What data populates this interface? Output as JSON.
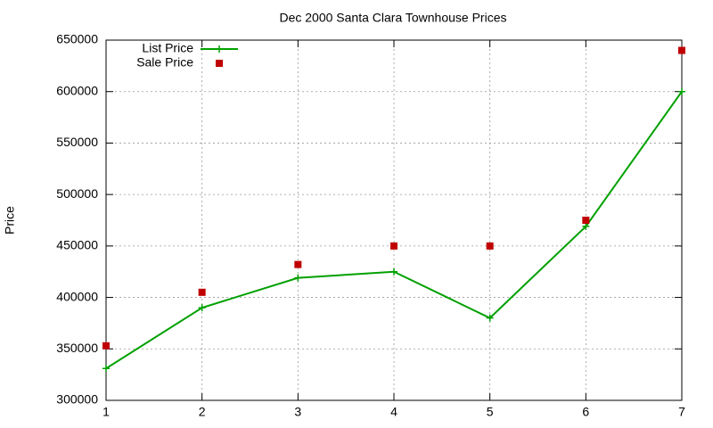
{
  "chart_data": {
    "type": "line",
    "title": "Dec 2000 Santa Clara Townhouse Prices",
    "ylabel": "Price",
    "x": [
      1,
      2,
      3,
      4,
      5,
      6,
      7
    ],
    "series": [
      {
        "name": "List Price",
        "color": "#00a000",
        "mode": "linespoints",
        "values": [
          331000,
          390000,
          419000,
          425000,
          380000,
          469000,
          600000
        ]
      },
      {
        "name": "Sale Price",
        "color": "#c00000",
        "mode": "points",
        "values": [
          353000,
          405000,
          432000,
          450000,
          450000,
          475000,
          640000
        ]
      }
    ],
    "xlim": [
      1,
      7
    ],
    "xticks": [
      1,
      2,
      3,
      4,
      5,
      6,
      7
    ],
    "ylim": [
      300000,
      650000
    ],
    "yticks": [
      300000,
      350000,
      400000,
      450000,
      500000,
      550000,
      600000,
      650000
    ],
    "grid": true,
    "legend": "top-left"
  }
}
